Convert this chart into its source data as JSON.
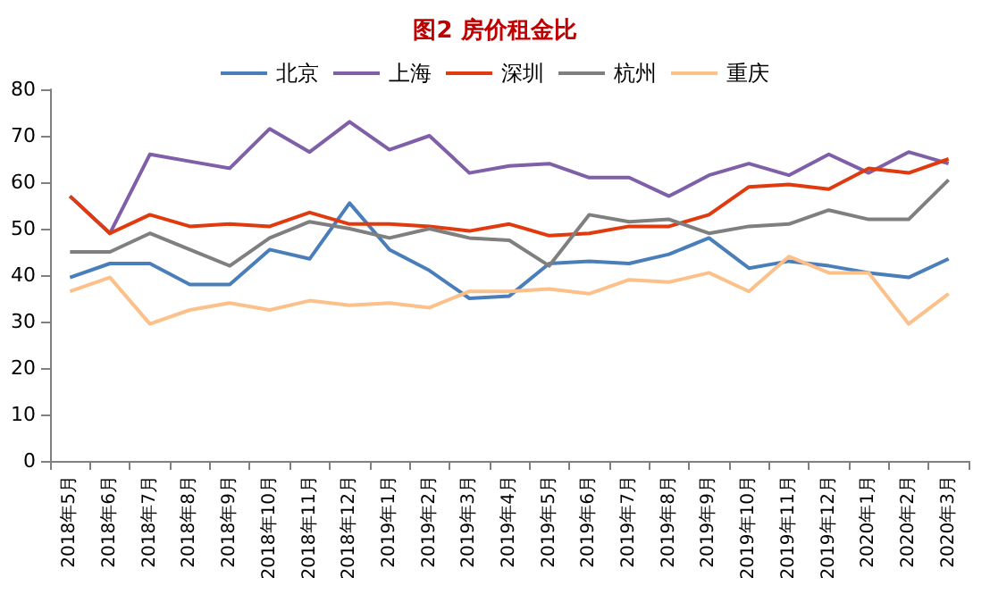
{
  "chart_data": {
    "type": "line",
    "title": "图2 房价租金比",
    "categories": [
      "2018年5月",
      "2018年6月",
      "2018年7月",
      "2018年8月",
      "2018年9月",
      "2018年10月",
      "2018年11月",
      "2018年12月",
      "2019年1月",
      "2019年2月",
      "2019年3月",
      "2019年4月",
      "2019年5月",
      "2019年6月",
      "2019年7月",
      "2019年8月",
      "2019年9月",
      "2019年10月",
      "2019年11月",
      "2019年12月",
      "2020年1月",
      "2020年2月",
      "2020年3月"
    ],
    "series": [
      {
        "name": "北京",
        "color": "#4a7ebb",
        "values": [
          39.5,
          42.5,
          42.5,
          38,
          38,
          45.5,
          43.5,
          55.5,
          45.5,
          41,
          35,
          35.5,
          42.5,
          43,
          42.5,
          44.5,
          48,
          41.5,
          43,
          42,
          40.5,
          39.5,
          43.5
        ]
      },
      {
        "name": "上海",
        "color": "#7f5fa8",
        "values": [
          57,
          49,
          66,
          64.5,
          63,
          71.5,
          66.5,
          73,
          67,
          70,
          62,
          63.5,
          64,
          61,
          61,
          57,
          61.5,
          64,
          61.5,
          66,
          62,
          66.5,
          64
        ]
      },
      {
        "name": "深圳",
        "color": "#e03a0f",
        "values": [
          57,
          49,
          53,
          50.5,
          51,
          50.5,
          53.5,
          51,
          51,
          50.5,
          49.5,
          51,
          48.5,
          49,
          50.5,
          50.5,
          53,
          59,
          59.5,
          58.5,
          63,
          62,
          65
        ]
      },
      {
        "name": "杭州",
        "color": "#7f7f7f",
        "values": [
          45,
          45,
          49,
          45.5,
          42,
          48,
          51.5,
          50,
          48,
          50,
          48,
          47.5,
          42,
          53,
          51.5,
          52,
          49,
          50.5,
          51,
          54,
          52,
          52,
          60.5
        ]
      },
      {
        "name": "重庆",
        "color": "#fcc08a",
        "values": [
          36.5,
          39.5,
          29.5,
          32.5,
          34,
          32.5,
          34.5,
          33.5,
          34,
          33,
          36.5,
          36.5,
          37,
          36,
          39,
          38.5,
          40.5,
          36.5,
          44,
          40.5,
          40.5,
          29.5,
          36
        ]
      }
    ],
    "ylim": [
      0,
      80
    ],
    "yticks": [
      0,
      10,
      20,
      30,
      40,
      50,
      60,
      70,
      80
    ],
    "grid": false,
    "legend": "top",
    "marker": "none",
    "line_style": "solid"
  }
}
